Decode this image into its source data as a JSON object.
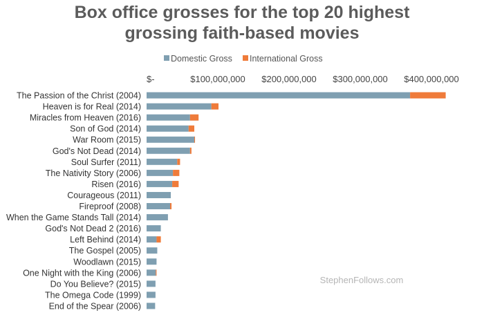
{
  "chart_data": {
    "type": "bar",
    "orientation": "horizontal",
    "stacked": true,
    "title_lines": [
      "Box office grosses for the top 20 highest",
      "grossing faith-based movies"
    ],
    "categories": [
      "The Passion of the Christ (2004)",
      "Heaven is for Real (2014)",
      "Miracles from Heaven (2016)",
      "Son of God (2014)",
      "War Room (2015)",
      "God's Not Dead (2014)",
      "Soul Surfer (2011)",
      "The Nativity Story (2006)",
      "Risen (2016)",
      "Courageous (2011)",
      "Fireproof (2008)",
      "When the Game Stands Tall (2014)",
      "God's Not Dead 2 (2016)",
      "Left Behind (2014)",
      "The Gospel (2005)",
      "Woodlawn (2015)",
      "One Night with the King (2006)",
      "Do You Believe? (2015)",
      "The Omega Code (1999)",
      "End of the Spear (2006)"
    ],
    "series": [
      {
        "name": "Domestic Gross",
        "color": "#7f9fb1",
        "values": [
          370000000,
          91000000,
          61000000,
          59000000,
          67000000,
          61000000,
          43000000,
          37000000,
          36000000,
          34000000,
          33000000,
          30000000,
          20000000,
          14000000,
          15000000,
          14000000,
          13000000,
          12500000,
          12500000,
          12000000
        ]
      },
      {
        "name": "International Gross",
        "color": "#ef7b3a",
        "values": [
          50000000,
          10000000,
          12000000,
          8000000,
          1000000,
          2000000,
          4000000,
          9000000,
          9000000,
          0,
          2000000,
          0,
          0,
          6000000,
          0,
          0,
          1000000,
          0,
          0,
          0
        ]
      }
    ],
    "x_ticks": [
      0,
      100000000,
      200000000,
      300000000,
      400000000
    ],
    "x_tick_labels": [
      "$-",
      "$100,000,000",
      "$200,000,000",
      "$300,000,000",
      "$400,000,000"
    ],
    "xlim": [
      0,
      430000000
    ],
    "legend_position": "top",
    "grid": false,
    "watermark": "StephenFollows.com"
  }
}
